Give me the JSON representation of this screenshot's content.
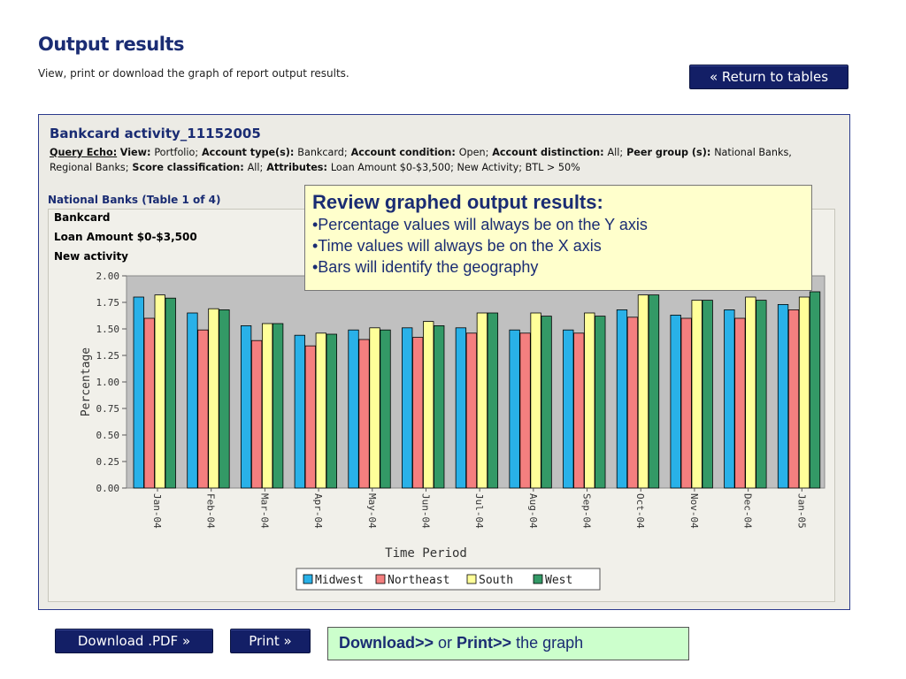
{
  "page": {
    "title": "Output results",
    "subtitle": "View, print or download the graph of report output results.",
    "return_button": "« Return to tables"
  },
  "report": {
    "title": "Bankcard activity_11152005",
    "echo_label": "Query Echo:",
    "echo_segments": [
      {
        "k": "View:",
        "v": "Portfolio;"
      },
      {
        "k": "Account type(s):",
        "v": "Bankcard;"
      },
      {
        "k": "Account condition:",
        "v": "Open;"
      },
      {
        "k": "Account distinction:",
        "v": "All;"
      },
      {
        "k": "Peer group (s):",
        "v": "National Banks, Regional Banks;"
      },
      {
        "k": "Score classification:",
        "v": "All;"
      },
      {
        "k": "Attributes:",
        "v": "Loan Amount $0-$3,500; New Activity; BTL > 50%"
      }
    ],
    "table_title": "National Banks (Table 1 of 4)",
    "headers": [
      "Bankcard",
      "Loan Amount $0-$3,500",
      "New activity"
    ]
  },
  "callout": {
    "heading": "Review graphed output results:",
    "items": [
      "•Percentage values will always be on the Y axis",
      "•Time values will always be on the X axis",
      "•Bars will identify the geography"
    ]
  },
  "footer": {
    "pdf_button": "Download .PDF »",
    "print_button": "Print »",
    "note_download": "Download>>",
    "note_or": " or ",
    "note_print": "Print>>",
    "note_tail": " the graph"
  },
  "colors": {
    "navy": "#131f66",
    "midwest": "#29b1e8",
    "northeast": "#f47f7f",
    "south": "#ffff99",
    "west": "#339966",
    "plot_bg": "#c0c0c0"
  },
  "chart_data": {
    "type": "bar",
    "xlabel": "Time Period",
    "ylabel": "Percentage",
    "ylim": [
      0,
      2.0
    ],
    "yticks": [
      "0.00",
      "0.25",
      "0.50",
      "0.75",
      "1.00",
      "1.25",
      "1.50",
      "1.75",
      "2.00"
    ],
    "categories": [
      "Jan-04",
      "Feb-04",
      "Mar-04",
      "Apr-04",
      "May-04",
      "Jun-04",
      "Jul-04",
      "Aug-04",
      "Sep-04",
      "Oct-04",
      "Nov-04",
      "Dec-04",
      "Jan-05"
    ],
    "series": [
      {
        "name": "Midwest",
        "values": [
          1.8,
          1.65,
          1.53,
          1.44,
          1.49,
          1.51,
          1.51,
          1.49,
          1.49,
          1.68,
          1.63,
          1.68,
          1.73
        ]
      },
      {
        "name": "Northeast",
        "values": [
          1.6,
          1.49,
          1.39,
          1.34,
          1.4,
          1.42,
          1.46,
          1.46,
          1.46,
          1.61,
          1.6,
          1.6,
          1.68
        ]
      },
      {
        "name": "South",
        "values": [
          1.82,
          1.69,
          1.55,
          1.46,
          1.51,
          1.57,
          1.65,
          1.65,
          1.65,
          1.82,
          1.77,
          1.8,
          1.8
        ]
      },
      {
        "name": "West",
        "values": [
          1.79,
          1.68,
          1.55,
          1.45,
          1.49,
          1.53,
          1.65,
          1.62,
          1.62,
          1.82,
          1.77,
          1.77,
          1.85
        ]
      }
    ],
    "legend": "bottom-center",
    "grid": false
  }
}
